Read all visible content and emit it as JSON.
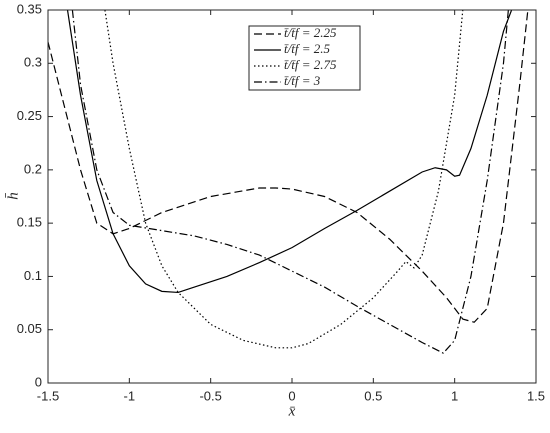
{
  "chart_data": {
    "type": "line",
    "x_label": "x̄",
    "y_label": "h̄",
    "xlim": [
      -1.5,
      1.5
    ],
    "ylim": [
      0,
      0.35
    ],
    "xticks": [
      -1.5,
      -1,
      -0.5,
      0,
      0.5,
      1,
      1.5
    ],
    "yticks": [
      0,
      0.05,
      0.1,
      0.15,
      0.2,
      0.25,
      0.3,
      0.35
    ],
    "grid": false,
    "legend": "top",
    "series": [
      {
        "name": "t̄/t̄f = 2.25",
        "color": "#000000",
        "dash": "dashed",
        "x": [
          -1.5,
          -1.4,
          -1.3,
          -1.2,
          -1.1,
          -1.0,
          -0.8,
          -0.5,
          -0.2,
          -0.1,
          0,
          0.2,
          0.4,
          0.6,
          0.8,
          0.95,
          1.05,
          1.12,
          1.2,
          1.3,
          1.4,
          1.45
        ],
        "values": [
          0.32,
          0.26,
          0.2,
          0.15,
          0.14,
          0.145,
          0.16,
          0.175,
          0.183,
          0.183,
          0.182,
          0.175,
          0.16,
          0.135,
          0.105,
          0.08,
          0.06,
          0.057,
          0.07,
          0.15,
          0.28,
          0.35
        ]
      },
      {
        "name": "t̄/t̄f = 2.5",
        "color": "#000000",
        "dash": "solid",
        "x": [
          -1.38,
          -1.3,
          -1.2,
          -1.1,
          -1.0,
          -0.9,
          -0.8,
          -0.7,
          -0.6,
          -0.4,
          -0.2,
          0,
          0.2,
          0.4,
          0.6,
          0.8,
          0.88,
          0.95,
          1.0,
          1.03,
          1.1,
          1.2,
          1.3,
          1.35
        ],
        "values": [
          0.35,
          0.27,
          0.19,
          0.14,
          0.11,
          0.093,
          0.086,
          0.085,
          0.09,
          0.1,
          0.113,
          0.127,
          0.145,
          0.162,
          0.18,
          0.198,
          0.202,
          0.2,
          0.194,
          0.195,
          0.22,
          0.27,
          0.33,
          0.35
        ]
      },
      {
        "name": "t̄/t̄f = 2.75",
        "color": "#000000",
        "dash": "dotted",
        "x": [
          -1.15,
          -1.1,
          -1.0,
          -0.9,
          -0.8,
          -0.7,
          -0.5,
          -0.3,
          -0.1,
          0,
          0.1,
          0.3,
          0.5,
          0.65,
          0.7,
          0.75,
          0.8,
          0.9,
          1.0,
          1.05
        ],
        "values": [
          0.35,
          0.3,
          0.22,
          0.15,
          0.11,
          0.085,
          0.055,
          0.04,
          0.033,
          0.033,
          0.037,
          0.055,
          0.08,
          0.105,
          0.114,
          0.108,
          0.12,
          0.18,
          0.27,
          0.35
        ]
      },
      {
        "name": "t̄/t̄f = 3",
        "color": "#000000",
        "dash": "dashdot",
        "x": [
          -1.35,
          -1.3,
          -1.2,
          -1.1,
          -1.0,
          -0.8,
          -0.6,
          -0.4,
          -0.2,
          0,
          0.2,
          0.4,
          0.6,
          0.8,
          0.93,
          1.0,
          1.1,
          1.2,
          1.3,
          1.33
        ],
        "values": [
          0.35,
          0.28,
          0.2,
          0.16,
          0.148,
          0.143,
          0.138,
          0.13,
          0.12,
          0.105,
          0.09,
          0.072,
          0.055,
          0.038,
          0.028,
          0.04,
          0.1,
          0.19,
          0.3,
          0.35
        ]
      }
    ]
  }
}
